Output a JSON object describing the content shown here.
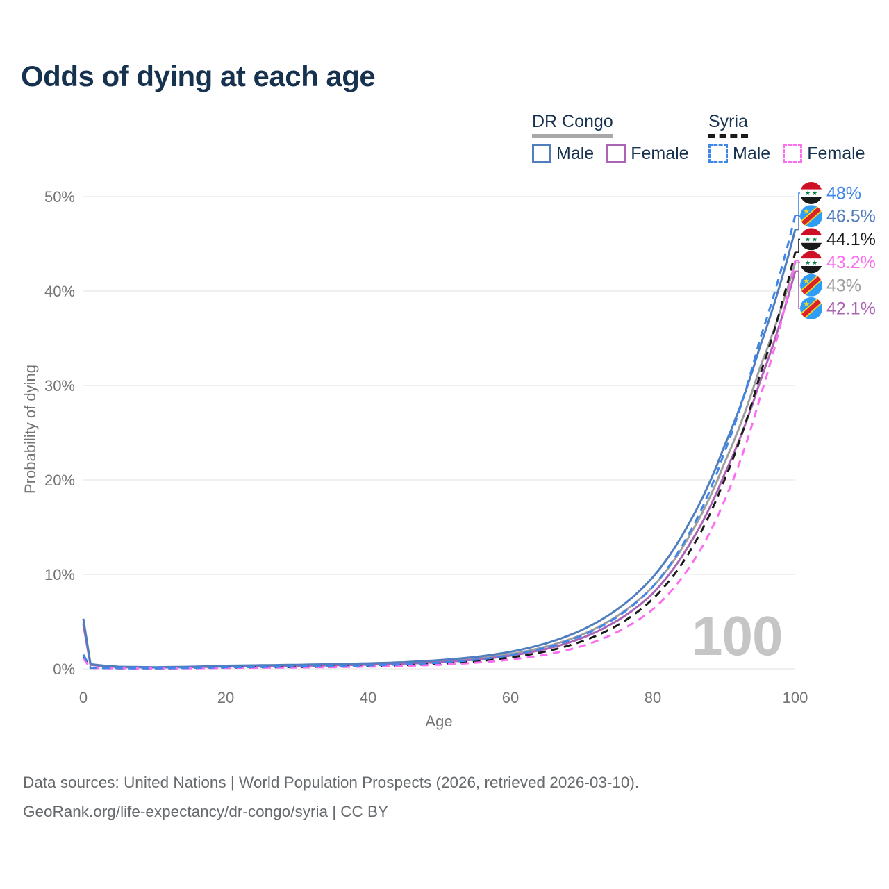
{
  "title": "Odds of dying at each age",
  "watermark": "100",
  "legend": {
    "groups": [
      {
        "id": "drcongo",
        "title": "DR Congo",
        "underline": "solid",
        "underline_color": "#a8a8a8",
        "items": [
          {
            "label": "Male",
            "color": "#4f7dbd",
            "dash": false
          },
          {
            "label": "Female",
            "color": "#ab64b4",
            "dash": false
          }
        ]
      },
      {
        "id": "syria",
        "title": "Syria",
        "underline": "dashed",
        "underline_color": "#1a1a1a",
        "items": [
          {
            "label": "Male",
            "color": "#3f86ea",
            "dash": true
          },
          {
            "label": "Female",
            "color": "#fb6ef2",
            "dash": true
          }
        ]
      }
    ]
  },
  "chart_data": {
    "type": "line",
    "title": "Odds of dying at each age",
    "xlabel": "Age",
    "ylabel": "Probability of dying",
    "xlim": [
      0,
      100
    ],
    "ylim": [
      0,
      50
    ],
    "grid": true,
    "xtick_values": [
      0,
      20,
      40,
      60,
      80,
      100
    ],
    "xticks": [
      "0",
      "20",
      "40",
      "60",
      "80",
      "100"
    ],
    "ytick_values": [
      0,
      10,
      20,
      30,
      40,
      50
    ],
    "yticks": [
      "0%",
      "10%",
      "20%",
      "30%",
      "40%",
      "50%"
    ],
    "x": [
      0,
      1,
      5,
      10,
      15,
      20,
      25,
      30,
      35,
      40,
      45,
      50,
      55,
      60,
      65,
      70,
      75,
      80,
      85,
      90,
      95,
      100
    ],
    "series": [
      {
        "id": "drcongo-total",
        "name": "DR Congo",
        "country": "drcongo",
        "color": "#9e9e9e",
        "dashed": false,
        "values": [
          5.0,
          0.46,
          0.2,
          0.15,
          0.2,
          0.28,
          0.33,
          0.37,
          0.43,
          0.5,
          0.61,
          0.8,
          1.1,
          1.55,
          2.35,
          3.6,
          5.6,
          8.7,
          13.9,
          21.7,
          31.8,
          43.0
        ]
      },
      {
        "id": "drcongo-female",
        "name": "DR Congo Female",
        "country": "drcongo",
        "color": "#ab64b4",
        "dashed": false,
        "values": [
          4.7,
          0.42,
          0.18,
          0.14,
          0.18,
          0.24,
          0.28,
          0.32,
          0.37,
          0.44,
          0.54,
          0.7,
          0.97,
          1.4,
          2.1,
          3.25,
          5.1,
          8.0,
          13.0,
          20.5,
          30.3,
          42.1
        ]
      },
      {
        "id": "drcongo-male",
        "name": "DR Congo Male",
        "country": "drcongo",
        "color": "#4f7dbd",
        "dashed": false,
        "values": [
          5.3,
          0.5,
          0.22,
          0.17,
          0.22,
          0.33,
          0.38,
          0.43,
          0.5,
          0.58,
          0.7,
          0.92,
          1.25,
          1.8,
          2.7,
          4.1,
          6.3,
          9.7,
          15.3,
          23.5,
          34.0,
          46.5
        ]
      },
      {
        "id": "syria-total",
        "name": "Syria",
        "country": "syria",
        "color": "#1a1a1a",
        "dashed": true,
        "values": [
          1.3,
          0.1,
          0.06,
          0.05,
          0.08,
          0.13,
          0.16,
          0.19,
          0.23,
          0.29,
          0.38,
          0.53,
          0.78,
          1.2,
          1.85,
          2.9,
          4.6,
          7.4,
          12.2,
          19.9,
          31.0,
          44.1
        ]
      },
      {
        "id": "syria-female",
        "name": "Syria Female",
        "country": "syria",
        "color": "#fb6ef2",
        "dashed": true,
        "values": [
          1.1,
          0.09,
          0.05,
          0.04,
          0.06,
          0.09,
          0.12,
          0.14,
          0.18,
          0.23,
          0.31,
          0.43,
          0.64,
          0.98,
          1.5,
          2.4,
          3.9,
          6.3,
          10.6,
          17.7,
          28.6,
          43.2
        ]
      },
      {
        "id": "syria-male",
        "name": "Syria Male",
        "country": "syria",
        "color": "#3f86ea",
        "dashed": true,
        "values": [
          1.5,
          0.12,
          0.07,
          0.06,
          0.1,
          0.16,
          0.2,
          0.24,
          0.29,
          0.36,
          0.47,
          0.65,
          0.95,
          1.45,
          2.25,
          3.5,
          5.5,
          8.7,
          14.2,
          22.8,
          34.8,
          48.0
        ]
      }
    ],
    "end_labels": [
      {
        "series": "syria-male",
        "text": "48%",
        "flag": "syria-flag-icon"
      },
      {
        "series": "drcongo-male",
        "text": "46.5%",
        "flag": "drcongo-flag-icon"
      },
      {
        "series": "syria-total",
        "text": "44.1%",
        "flag": "syria-flag-icon"
      },
      {
        "series": "syria-female",
        "text": "43.2%",
        "flag": "syria-flag-icon"
      },
      {
        "series": "drcongo-total",
        "text": "43%",
        "flag": "drcongo-flag-icon"
      },
      {
        "series": "drcongo-female",
        "text": "42.1%",
        "flag": "drcongo-flag-icon"
      }
    ],
    "legend_position": "top-right"
  },
  "footer": {
    "line1": "Data sources: United Nations | World Population Prospects (2026, retrieved 2026-03-10).",
    "line2": "GeoRank.org/life-expectancy/dr-congo/syria | CC BY"
  }
}
